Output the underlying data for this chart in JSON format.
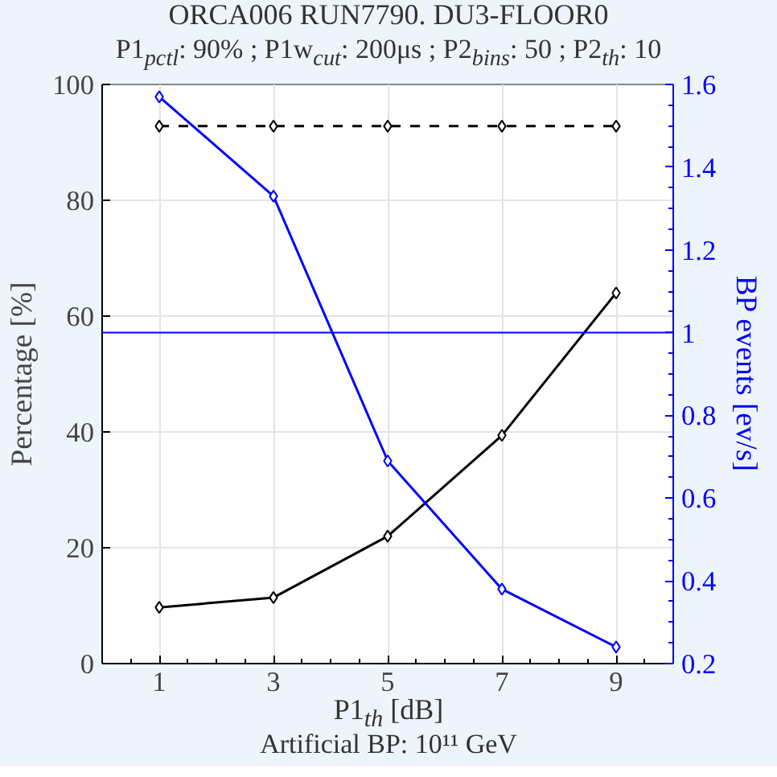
{
  "chart_data": {
    "type": "line",
    "title": "ORCA006 RUN7790. DU3-FLOOR0",
    "subtitle": "P1$_{pctl}$: 90% ; P1w$_{cut}$: 200μs ; P2$_{bins}$: 50 ; P2$_{th}$: 10",
    "xlabel": "P1$_{th}$ [dB]",
    "ylabel": "Percentage [%]",
    "y2label": "BP events [ev/s]",
    "annotations": [
      "Artificial BP: 10¹¹ GeV"
    ],
    "x": [
      1,
      3,
      5,
      7,
      9
    ],
    "xlim": [
      0,
      10
    ],
    "xticks": [
      1,
      3,
      5,
      7,
      9
    ],
    "ylim": [
      0,
      100
    ],
    "yticks": [
      0,
      20,
      40,
      60,
      80,
      100
    ],
    "y2lim": [
      0.2,
      1.6
    ],
    "y2ticks": [
      {
        "value": 0.2,
        "label": "0.2"
      },
      {
        "value": 0.4,
        "label": "0.4"
      },
      {
        "value": 0.6,
        "label": "0.6"
      },
      {
        "value": 0.8,
        "label": "0.8"
      },
      {
        "value": 1,
        "label": "1"
      },
      {
        "value": 1.2,
        "label": "1.2"
      },
      {
        "value": 1.4,
        "label": "1.4"
      },
      {
        "value": 1.6,
        "label": "1.6"
      }
    ],
    "series": [
      {
        "color": "#000000",
        "values": [
          92.8,
          92.8,
          92.8,
          92.8,
          92.8
        ],
        "line_style": "dashed"
      },
      {
        "color": "#000000",
        "values": [
          9.7,
          11.4,
          22,
          39.4,
          64
        ]
      },
      {
        "color": "#0000ff",
        "values": [
          1.57,
          1.33,
          0.69,
          0.38,
          0.24
        ],
        "axis": "y2"
      }
    ],
    "ref_lines": [
      {
        "axis": "y2",
        "value": 1,
        "color": "#0000ff"
      }
    ],
    "grid": true,
    "marker": "diamond"
  }
}
